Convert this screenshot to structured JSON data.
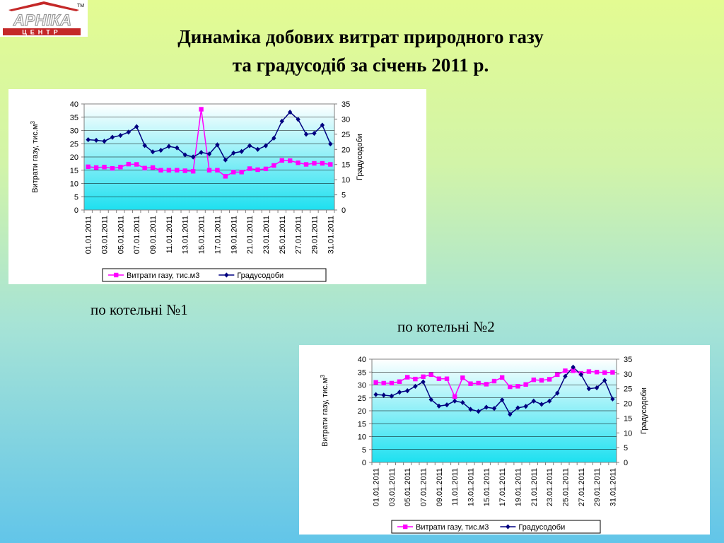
{
  "logo": {
    "text": "АРНІКА",
    "sub": "ЦЕНТР",
    "tm": "TM"
  },
  "title_line1": "Динаміка добових витрат природного газу",
  "title_line2": "та градусодіб за січень 2011 р.",
  "caption1": "по котельні №1",
  "caption2": "по котельні №2",
  "colors": {
    "gas": "#ff00ff",
    "degree_days": "#000080",
    "plot_top": "#ffffff",
    "plot_bottom": "#1ee0f0"
  },
  "chart_data": [
    {
      "type": "line",
      "x": [
        "01.01.2011",
        "02.01.2011",
        "03.01.2011",
        "04.01.2011",
        "05.01.2011",
        "06.01.2011",
        "07.01.2011",
        "08.01.2011",
        "09.01.2011",
        "10.01.2011",
        "11.01.2011",
        "12.01.2011",
        "13.01.2011",
        "14.01.2011",
        "15.01.2011",
        "16.01.2011",
        "17.01.2011",
        "18.01.2011",
        "19.01.2011",
        "20.01.2011",
        "21.01.2011",
        "22.01.2011",
        "23.01.2011",
        "24.01.2011",
        "25.01.2011",
        "26.01.2011",
        "27.01.2011",
        "28.01.2011",
        "29.01.2011",
        "30.01.2011",
        "31.01.2011"
      ],
      "xtick_labels": [
        "01.01.2011",
        "03.01.2011",
        "05.01.2011",
        "07.01.2011",
        "09.01.2011",
        "11.01.2011",
        "13.01.2011",
        "15.01.2011",
        "17.01.2011",
        "19.01.2011",
        "21.01.2011",
        "23.01.2011",
        "25.01.2011",
        "27.01.2011",
        "29.01.2011",
        "31.01.2011"
      ],
      "ylabel": "Витрати газу, тис.м",
      "ylabel_sup": "3",
      "y2label": "Градусодоби",
      "ylim": [
        0,
        40
      ],
      "y2lim": [
        0,
        35
      ],
      "yticks": [
        "0",
        "5",
        "10",
        "15",
        "20",
        "25",
        "30",
        "35",
        "40"
      ],
      "y2ticks": [
        "0",
        "5",
        "10",
        "15",
        "20",
        "25",
        "30",
        "35"
      ],
      "grid": true,
      "legend_position": "bottom",
      "series": [
        {
          "name": "Витрати газу, тис.м3",
          "axis": "left",
          "values": [
            16.3,
            16,
            16.2,
            15.7,
            16.2,
            17.3,
            17.2,
            15.8,
            16,
            15,
            15,
            15,
            14.8,
            14.6,
            38,
            15,
            15,
            12.7,
            14.3,
            14.3,
            15.6,
            15.2,
            15.5,
            16.8,
            18.7,
            18.6,
            17.8,
            17.2,
            17.6,
            17.6,
            17.2
          ]
        },
        {
          "name": "Градусодоби",
          "axis": "right",
          "values": [
            23.2,
            23,
            22.7,
            24,
            24.6,
            25.7,
            27.5,
            21.3,
            19.2,
            19.7,
            21,
            20.5,
            18.2,
            17.5,
            19,
            18.5,
            21.5,
            16.5,
            18.8,
            19.3,
            21.2,
            20,
            21.2,
            23.7,
            29.3,
            32.3,
            29.9,
            25,
            25.3,
            28,
            21.8
          ]
        }
      ]
    },
    {
      "type": "line",
      "x": [
        "01.01.2011",
        "02.01.2011",
        "03.01.2011",
        "04.01.2011",
        "05.01.2011",
        "06.01.2011",
        "07.01.2011",
        "08.01.2011",
        "09.01.2011",
        "10.01.2011",
        "11.01.2011",
        "12.01.2011",
        "13.01.2011",
        "14.01.2011",
        "15.01.2011",
        "16.01.2011",
        "17.01.2011",
        "18.01.2011",
        "19.01.2011",
        "20.01.2011",
        "21.01.2011",
        "22.01.2011",
        "23.01.2011",
        "24.01.2011",
        "25.01.2011",
        "26.01.2011",
        "27.01.2011",
        "28.01.2011",
        "29.01.2011",
        "30.01.2011",
        "31.01.2011"
      ],
      "xtick_labels": [
        "01.01.2011",
        "03.01.2011",
        "05.01.2011",
        "07.01.2011",
        "09.01.2011",
        "11.01.2011",
        "13.01.2011",
        "15.01.2011",
        "17.01.2011",
        "19.01.2011",
        "21.01.2011",
        "23.01.2011",
        "25.01.2011",
        "27.01.2011",
        "29.01.2011",
        "31.01.2011"
      ],
      "ylabel": "Витрати газу, тис.м",
      "ylabel_sup": "3",
      "y2label": "Градусодоби",
      "ylim": [
        0,
        40
      ],
      "y2lim": [
        0,
        35
      ],
      "yticks": [
        "0",
        "5",
        "10",
        "15",
        "20",
        "25",
        "30",
        "35",
        "40"
      ],
      "y2ticks": [
        "0",
        "5",
        "10",
        "15",
        "20",
        "25",
        "30",
        "35"
      ],
      "grid": true,
      "legend_position": "bottom",
      "series": [
        {
          "name": "Витрати газу, тис.м3",
          "axis": "left",
          "values": [
            31,
            30.7,
            30.7,
            31.3,
            33,
            32.3,
            33.2,
            34,
            32.4,
            32.4,
            25.5,
            32.8,
            30.5,
            30.7,
            30.3,
            31.5,
            32.9,
            29.3,
            29.5,
            30.2,
            32,
            31.8,
            32.2,
            34,
            35.5,
            35.5,
            34.5,
            35.2,
            35,
            34.8,
            34.9
          ]
        },
        {
          "name": "Градусодоби",
          "axis": "right",
          "values": [
            23,
            22.8,
            22.5,
            23.8,
            24.3,
            25.8,
            27.3,
            21.3,
            19.1,
            19.5,
            20.8,
            20.3,
            18,
            17.3,
            18.7,
            18.3,
            21.2,
            16.3,
            18.5,
            19,
            20.8,
            19.7,
            20.8,
            23.5,
            29.2,
            32.3,
            29.8,
            25,
            25.3,
            27.8,
            21.5
          ]
        }
      ]
    }
  ]
}
